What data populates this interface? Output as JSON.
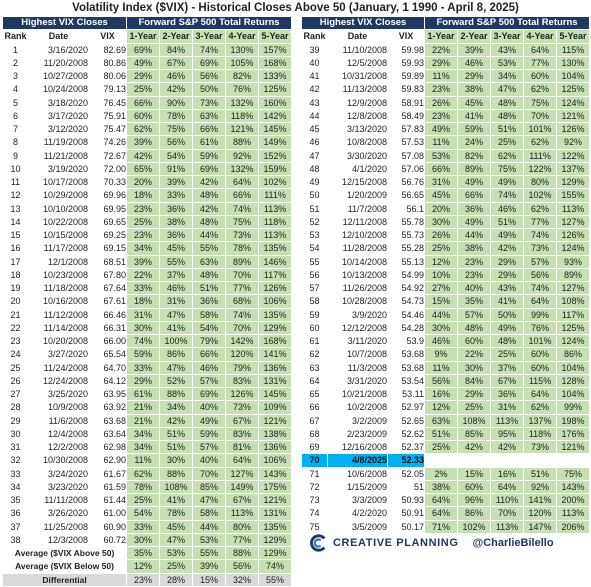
{
  "title": "Volatility Index ($VIX) - Historical Closes Above 50 (January, 1 1990 - April 8, 2025)",
  "left": {
    "group_left": "Highest VIX Closes",
    "group_right": "Forward S&P 500 Total Returns",
    "headers": [
      "Rank",
      "Date",
      "VIX",
      "1-Year",
      "2-Year",
      "3-Year",
      "4-Year",
      "5-Year"
    ],
    "rows": [
      [
        "1",
        "3/16/2020",
        "82.69",
        "69%",
        "84%",
        "74%",
        "130%",
        "157%"
      ],
      [
        "2",
        "11/20/2008",
        "80.86",
        "49%",
        "67%",
        "69%",
        "105%",
        "168%"
      ],
      [
        "3",
        "10/27/2008",
        "80.06",
        "29%",
        "46%",
        "56%",
        "82%",
        "133%"
      ],
      [
        "4",
        "10/24/2008",
        "79.13",
        "25%",
        "42%",
        "50%",
        "76%",
        "125%"
      ],
      [
        "5",
        "3/18/2020",
        "76.45",
        "66%",
        "90%",
        "73%",
        "132%",
        "160%"
      ],
      [
        "6",
        "3/17/2020",
        "75.91",
        "60%",
        "78%",
        "63%",
        "118%",
        "142%"
      ],
      [
        "7",
        "3/12/2020",
        "75.47",
        "62%",
        "75%",
        "66%",
        "121%",
        "145%"
      ],
      [
        "8",
        "11/19/2008",
        "74.26",
        "39%",
        "56%",
        "61%",
        "88%",
        "149%"
      ],
      [
        "9",
        "11/21/2008",
        "72.67",
        "42%",
        "54%",
        "59%",
        "92%",
        "152%"
      ],
      [
        "10",
        "3/19/2020",
        "72.00",
        "65%",
        "91%",
        "69%",
        "132%",
        "159%"
      ],
      [
        "11",
        "10/17/2008",
        "70.33",
        "20%",
        "39%",
        "42%",
        "64%",
        "102%"
      ],
      [
        "12",
        "10/29/2008",
        "69.96",
        "18%",
        "33%",
        "48%",
        "66%",
        "111%"
      ],
      [
        "13",
        "10/10/2008",
        "69.95",
        "23%",
        "36%",
        "42%",
        "74%",
        "113%"
      ],
      [
        "14",
        "10/22/2008",
        "69.65",
        "25%",
        "38%",
        "48%",
        "75%",
        "118%"
      ],
      [
        "15",
        "10/15/2008",
        "69.25",
        "23%",
        "36%",
        "44%",
        "73%",
        "113%"
      ],
      [
        "16",
        "11/17/2008",
        "69.15",
        "34%",
        "45%",
        "55%",
        "78%",
        "135%"
      ],
      [
        "17",
        "12/1/2008",
        "68.51",
        "39%",
        "55%",
        "63%",
        "89%",
        "146%"
      ],
      [
        "18",
        "10/23/2008",
        "67.80",
        "22%",
        "37%",
        "48%",
        "70%",
        "117%"
      ],
      [
        "19",
        "11/18/2008",
        "67.64",
        "33%",
        "46%",
        "51%",
        "77%",
        "126%"
      ],
      [
        "20",
        "10/16/2008",
        "67.61",
        "18%",
        "31%",
        "36%",
        "68%",
        "106%"
      ],
      [
        "21",
        "11/12/2008",
        "66.46",
        "31%",
        "47%",
        "58%",
        "74%",
        "135%"
      ],
      [
        "22",
        "11/14/2008",
        "66.31",
        "30%",
        "41%",
        "54%",
        "70%",
        "129%"
      ],
      [
        "23",
        "10/20/2008",
        "66.00",
        "74%",
        "100%",
        "79%",
        "142%",
        "168%"
      ],
      [
        "24",
        "3/27/2020",
        "65.54",
        "59%",
        "86%",
        "66%",
        "120%",
        "141%"
      ],
      [
        "25",
        "11/24/2008",
        "64.70",
        "33%",
        "47%",
        "46%",
        "79%",
        "136%"
      ],
      [
        "26",
        "12/24/2008",
        "64.12",
        "29%",
        "52%",
        "57%",
        "83%",
        "131%"
      ],
      [
        "27",
        "3/25/2020",
        "63.95",
        "61%",
        "88%",
        "69%",
        "126%",
        "145%"
      ],
      [
        "28",
        "10/9/2008",
        "63.92",
        "21%",
        "34%",
        "40%",
        "73%",
        "109%"
      ],
      [
        "29",
        "11/6/2008",
        "63.68",
        "21%",
        "42%",
        "49%",
        "67%",
        "121%"
      ],
      [
        "30",
        "12/4/2008",
        "63.64",
        "34%",
        "51%",
        "59%",
        "83%",
        "138%"
      ],
      [
        "31",
        "12/2/2008",
        "62.98",
        "34%",
        "51%",
        "57%",
        "81%",
        "136%"
      ],
      [
        "32",
        "10/30/2008",
        "62.90",
        "11%",
        "30%",
        "40%",
        "64%",
        "106%"
      ],
      [
        "33",
        "3/24/2020",
        "61.67",
        "62%",
        "88%",
        "70%",
        "127%",
        "143%"
      ],
      [
        "34",
        "3/23/2020",
        "61.59",
        "78%",
        "108%",
        "85%",
        "149%",
        "175%"
      ],
      [
        "35",
        "11/11/2008",
        "61.44",
        "25%",
        "41%",
        "47%",
        "67%",
        "121%"
      ],
      [
        "36",
        "3/26/2020",
        "61.00",
        "54%",
        "78%",
        "58%",
        "113%",
        "131%"
      ],
      [
        "37",
        "11/25/2008",
        "60.90",
        "33%",
        "45%",
        "44%",
        "80%",
        "135%"
      ],
      [
        "38",
        "12/3/2008",
        "60.72",
        "30%",
        "47%",
        "53%",
        "77%",
        "129%"
      ]
    ],
    "avg_above_label": "Average ($VIX Above 50)",
    "avg_above": [
      "35%",
      "53%",
      "55%",
      "88%",
      "129%"
    ],
    "avg_below_label": "Average ($VIX Below 50)",
    "avg_below": [
      "12%",
      "25%",
      "39%",
      "56%",
      "74%"
    ],
    "diff_label": "Differential",
    "diff": [
      "23%",
      "28%",
      "15%",
      "32%",
      "55%"
    ]
  },
  "right": {
    "group_left": "Highest VIX Closes",
    "group_right": "Forward S&P 500 Total Returns",
    "headers": [
      "Rank",
      "Date",
      "VIX",
      "1-Year",
      "2-Year",
      "3-Year",
      "4-Year",
      "5-Year"
    ],
    "rows": [
      [
        "39",
        "11/10/2008",
        "59.98",
        "22%",
        "39%",
        "43%",
        "64%",
        "115%"
      ],
      [
        "40",
        "12/5/2008",
        "59.93",
        "29%",
        "46%",
        "53%",
        "77%",
        "130%"
      ],
      [
        "41",
        "10/31/2008",
        "59.89",
        "11%",
        "29%",
        "34%",
        "60%",
        "104%"
      ],
      [
        "42",
        "11/13/2008",
        "59.83",
        "23%",
        "38%",
        "47%",
        "62%",
        "125%"
      ],
      [
        "43",
        "12/9/2008",
        "58.91",
        "26%",
        "45%",
        "48%",
        "75%",
        "124%"
      ],
      [
        "44",
        "12/8/2008",
        "58.49",
        "23%",
        "41%",
        "48%",
        "70%",
        "121%"
      ],
      [
        "45",
        "3/13/2020",
        "57.83",
        "49%",
        "59%",
        "51%",
        "101%",
        "126%"
      ],
      [
        "46",
        "10/8/2008",
        "57.53",
        "11%",
        "24%",
        "25%",
        "62%",
        "92%"
      ],
      [
        "47",
        "3/30/2020",
        "57.08",
        "53%",
        "82%",
        "62%",
        "111%",
        "122%"
      ],
      [
        "48",
        "4/1/2020",
        "57.06",
        "66%",
        "89%",
        "75%",
        "122%",
        "137%"
      ],
      [
        "49",
        "12/15/2008",
        "56.76",
        "31%",
        "49%",
        "49%",
        "80%",
        "129%"
      ],
      [
        "50",
        "1/20/2009",
        "56.65",
        "45%",
        "66%",
        "74%",
        "102%",
        "155%"
      ],
      [
        "51",
        "11/7/2008",
        "56.1",
        "20%",
        "36%",
        "46%",
        "62%",
        "113%"
      ],
      [
        "52",
        "12/11/2008",
        "55.78",
        "30%",
        "49%",
        "51%",
        "77%",
        "127%"
      ],
      [
        "53",
        "12/10/2008",
        "55.73",
        "26%",
        "44%",
        "49%",
        "74%",
        "126%"
      ],
      [
        "54",
        "11/28/2008",
        "55.28",
        "25%",
        "38%",
        "42%",
        "73%",
        "124%"
      ],
      [
        "55",
        "10/14/2008",
        "55.13",
        "12%",
        "23%",
        "29%",
        "57%",
        "93%"
      ],
      [
        "56",
        "10/13/2008",
        "54.99",
        "10%",
        "23%",
        "29%",
        "56%",
        "89%"
      ],
      [
        "57",
        "11/26/2008",
        "54.92",
        "27%",
        "40%",
        "43%",
        "74%",
        "127%"
      ],
      [
        "58",
        "10/28/2008",
        "54.73",
        "15%",
        "35%",
        "41%",
        "64%",
        "108%"
      ],
      [
        "59",
        "3/9/2020",
        "54.46",
        "44%",
        "57%",
        "50%",
        "99%",
        "117%"
      ],
      [
        "60",
        "12/12/2008",
        "54.28",
        "30%",
        "48%",
        "49%",
        "76%",
        "125%"
      ],
      [
        "61",
        "3/11/2020",
        "53.9",
        "46%",
        "60%",
        "48%",
        "101%",
        "124%"
      ],
      [
        "62",
        "10/7/2008",
        "53.68",
        "9%",
        "22%",
        "25%",
        "60%",
        "86%"
      ],
      [
        "63",
        "11/3/2008",
        "53.68",
        "11%",
        "30%",
        "37%",
        "60%",
        "104%"
      ],
      [
        "64",
        "3/31/2020",
        "53.54",
        "56%",
        "84%",
        "67%",
        "115%",
        "128%"
      ],
      [
        "65",
        "10/21/2008",
        "53.11",
        "16%",
        "29%",
        "36%",
        "64%",
        "104%"
      ],
      [
        "66",
        "10/2/2008",
        "52.97",
        "12%",
        "25%",
        "31%",
        "62%",
        "99%"
      ],
      [
        "67",
        "3/2/2009",
        "52.65",
        "63%",
        "108%",
        "113%",
        "137%",
        "198%"
      ],
      [
        "68",
        "2/23/2009",
        "52.62",
        "51%",
        "85%",
        "95%",
        "118%",
        "176%"
      ],
      [
        "69",
        "12/16/2008",
        "52.37",
        "25%",
        "42%",
        "42%",
        "73%",
        "121%"
      ],
      [
        "70",
        "4/8/2025",
        "52.33",
        "",
        "",
        "",
        "",
        ""
      ],
      [
        "71",
        "10/6/2008",
        "52.05",
        "2%",
        "15%",
        "16%",
        "51%",
        "75%"
      ],
      [
        "72",
        "1/15/2009",
        "51",
        "38%",
        "60%",
        "64%",
        "92%",
        "143%"
      ],
      [
        "73",
        "3/3/2009",
        "50.93",
        "64%",
        "96%",
        "110%",
        "141%",
        "200%"
      ],
      [
        "74",
        "4/2/2020",
        "50.91",
        "64%",
        "86%",
        "70%",
        "120%",
        "113%"
      ],
      [
        "75",
        "3/5/2009",
        "50.17",
        "71%",
        "102%",
        "113%",
        "147%",
        "206%"
      ]
    ]
  },
  "brand": {
    "name": "CREATIVE PLANNING",
    "handle": "@CharlieBilello",
    "logo_icon": "creative-planning-logo-icon"
  },
  "colors": {
    "header_bg": "#1f3864",
    "returns_bg": "#c6e0b4",
    "highlight_bg": "#00b0f0",
    "diff_bg": "#d9d9d9"
  }
}
